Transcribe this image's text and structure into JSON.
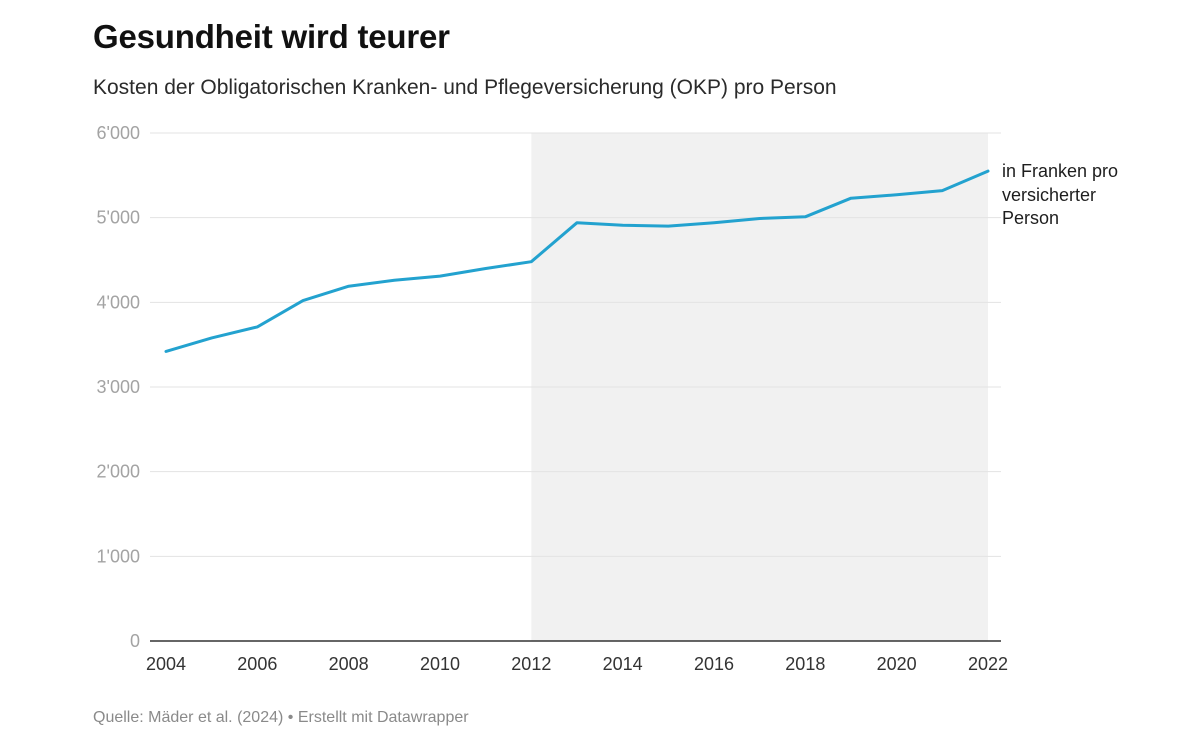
{
  "header": {
    "title": "Gesundheit wird teurer",
    "subtitle": "Kosten der Obligatorischen Kranken- und Pflegeversicherung (OKP) pro Person"
  },
  "annotation": "in Franken pro versicherter Person",
  "footer": {
    "source": "Quelle: Mäder et al. (2024)",
    "separator": "•",
    "credit": "Erstellt mit Datawrapper"
  },
  "colors": {
    "line": "#23a2cf",
    "shade": "#f1f1f1",
    "grid": "#e3e3e3",
    "baseline": "#333333"
  },
  "chart_data": {
    "type": "line",
    "title": "Gesundheit wird teurer",
    "subtitle": "Kosten der Obligatorischen Kranken- und Pflegeversicherung (OKP) pro Person",
    "xlabel": "",
    "ylabel": "",
    "x": [
      2004,
      2005,
      2006,
      2007,
      2008,
      2009,
      2010,
      2011,
      2012,
      2013,
      2014,
      2015,
      2016,
      2017,
      2018,
      2019,
      2020,
      2021,
      2022
    ],
    "series": [
      {
        "values": [
          3420,
          3580,
          3710,
          4020,
          4190,
          4260,
          4310,
          4400,
          4480,
          4940,
          4910,
          4900,
          4940,
          4990,
          5010,
          5230,
          5270,
          5320,
          5550
        ]
      }
    ],
    "xlim": [
      2004,
      2022
    ],
    "ylim": [
      0,
      6000
    ],
    "xticks": [
      2004,
      2006,
      2008,
      2010,
      2012,
      2014,
      2016,
      2018,
      2020,
      2022
    ],
    "yticks": [
      0,
      1000,
      2000,
      3000,
      4000,
      5000,
      6000
    ],
    "xtick_labels": [
      "2004",
      "2006",
      "2008",
      "2010",
      "2012",
      "2014",
      "2016",
      "2018",
      "2020",
      "2022"
    ],
    "ytick_labels": [
      "0",
      "1'000",
      "2'000",
      "3'000",
      "4'000",
      "5'000",
      "6'000"
    ],
    "shaded_range": [
      2012,
      2022
    ],
    "grid": true
  }
}
